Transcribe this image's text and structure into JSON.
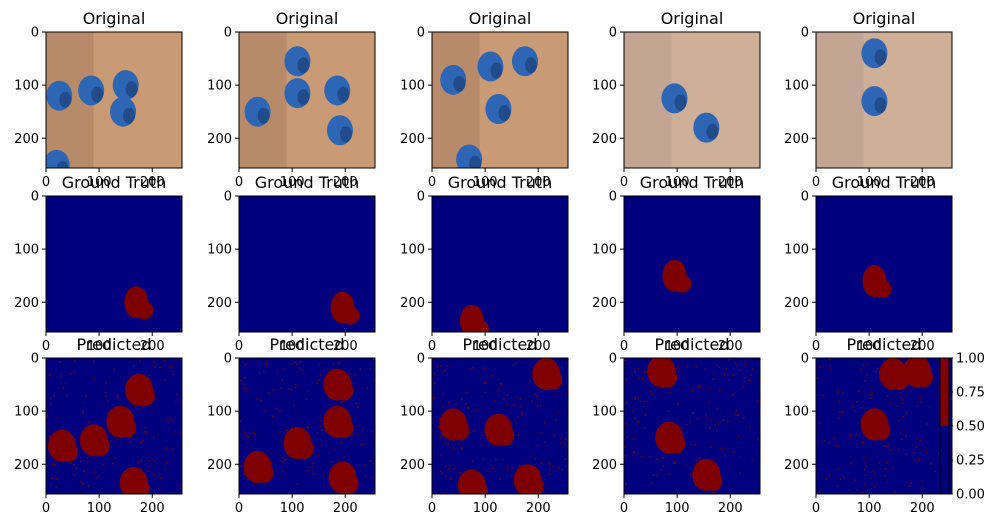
{
  "chart_data": {
    "type": "heatmap",
    "colors": {
      "background": "#00007f",
      "mask": "#7f0000",
      "wood_light": "#c99a74",
      "wood_dark": "#a77d63",
      "pipe_blue": "#2d66b5",
      "pipe_dark": "#173b72",
      "wall": "#d8d8dc"
    },
    "row_titles": [
      "Original",
      "Ground Truth",
      "Predicted"
    ],
    "xticks": [
      "0",
      "100",
      "200"
    ],
    "yticks": [
      "0",
      "100",
      "200"
    ],
    "xlim": [
      0,
      256
    ],
    "ylim": [
      256,
      0
    ],
    "colorbar": {
      "ticks": [
        "0.00",
        "0.25",
        "0.50",
        "0.75",
        "1.00"
      ],
      "range": [
        0,
        1
      ],
      "colormap": "jet-like two-tone"
    },
    "panels": [
      {
        "originals": [
          [
            25,
            120
          ],
          [
            85,
            110
          ],
          [
            150,
            100
          ],
          [
            145,
            150
          ],
          [
            20,
            250
          ]
        ],
        "truth": [
          [
            170,
            200
          ]
        ],
        "predicted": [
          [
            30,
            165
          ],
          [
            90,
            155
          ],
          [
            140,
            120
          ],
          [
            165,
            235
          ],
          [
            175,
            60
          ]
        ]
      },
      {
        "originals": [
          [
            35,
            150
          ],
          [
            110,
            115
          ],
          [
            185,
            110
          ],
          [
            190,
            185
          ],
          [
            110,
            55
          ]
        ],
        "truth": [
          [
            195,
            210
          ]
        ],
        "predicted": [
          [
            35,
            205
          ],
          [
            110,
            160
          ],
          [
            185,
            120
          ],
          [
            195,
            225
          ],
          [
            185,
            50
          ]
        ]
      },
      {
        "originals": [
          [
            40,
            90
          ],
          [
            110,
            65
          ],
          [
            125,
            145
          ],
          [
            175,
            55
          ],
          [
            70,
            240
          ]
        ],
        "truth": [
          [
            75,
            235
          ]
        ],
        "predicted": [
          [
            40,
            125
          ],
          [
            125,
            135
          ],
          [
            180,
            230
          ],
          [
            215,
            30
          ],
          [
            75,
            240
          ]
        ]
      },
      {
        "originals": [
          [
            95,
            125
          ],
          [
            155,
            180
          ]
        ],
        "truth": [
          [
            95,
            150
          ]
        ],
        "predicted": [
          [
            85,
            150
          ],
          [
            155,
            220
          ],
          [
            70,
            25
          ]
        ]
      },
      {
        "originals": [
          [
            110,
            40
          ],
          [
            110,
            130
          ]
        ],
        "truth": [
          [
            110,
            160
          ]
        ],
        "predicted": [
          [
            110,
            125
          ],
          [
            145,
            30
          ],
          [
            190,
            25
          ]
        ]
      }
    ]
  }
}
